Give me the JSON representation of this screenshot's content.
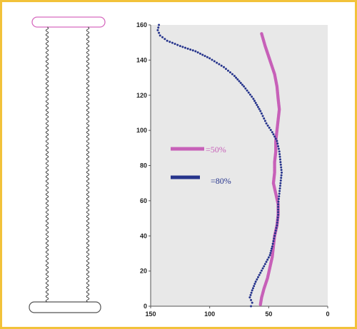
{
  "colors": {
    "border": "#f2c23a",
    "plot_bg": "#e8e8e8",
    "series_50": "#c760b8",
    "series_80": "#26348c",
    "spring": "#333333",
    "top_plate": "#d66bbf",
    "bottom_plate": "#555555"
  },
  "diagram": {
    "type": "two-spring column illustration",
    "spring_count": 2
  },
  "chart_data": {
    "type": "line",
    "title": "",
    "xlabel": "",
    "ylabel": "",
    "xlim": [
      150,
      0
    ],
    "ylim": [
      0,
      160
    ],
    "x_reversed": true,
    "xticks": [
      150,
      100,
      50,
      0
    ],
    "yticks": [
      0,
      20,
      40,
      60,
      80,
      100,
      120,
      140,
      160
    ],
    "grid": false,
    "legend_position": "left-middle",
    "series": [
      {
        "name": "=50%",
        "color": "#c760b8",
        "style": "thick-dots",
        "points": [
          [
            56,
            155
          ],
          [
            53,
            148
          ],
          [
            49,
            140
          ],
          [
            45,
            132
          ],
          [
            43,
            125
          ],
          [
            42,
            118
          ],
          [
            41,
            112
          ],
          [
            42,
            106
          ],
          [
            43,
            100
          ],
          [
            44,
            94
          ],
          [
            44,
            88
          ],
          [
            45,
            82
          ],
          [
            45,
            76
          ],
          [
            46,
            70
          ],
          [
            44,
            64
          ],
          [
            42,
            58
          ],
          [
            42,
            52
          ],
          [
            43,
            46
          ],
          [
            45,
            40
          ],
          [
            46,
            34
          ],
          [
            47,
            28
          ],
          [
            49,
            22
          ],
          [
            51,
            16
          ],
          [
            54,
            10
          ],
          [
            56,
            5
          ],
          [
            57,
            1
          ]
        ]
      },
      {
        "name": "=80%",
        "color": "#26348c",
        "style": "dotted",
        "points": [
          [
            143,
            160
          ],
          [
            144,
            157
          ],
          [
            142,
            154
          ],
          [
            136,
            151
          ],
          [
            125,
            148
          ],
          [
            112,
            145
          ],
          [
            100,
            141
          ],
          [
            88,
            136
          ],
          [
            79,
            131
          ],
          [
            71,
            125
          ],
          [
            63,
            118
          ],
          [
            57,
            111
          ],
          [
            52,
            104
          ],
          [
            47,
            99
          ],
          [
            43,
            94
          ],
          [
            41,
            88
          ],
          [
            40,
            82
          ],
          [
            39,
            76
          ],
          [
            40,
            70
          ],
          [
            41,
            64
          ],
          [
            42,
            58
          ],
          [
            42,
            52
          ],
          [
            43,
            46
          ],
          [
            45,
            40
          ],
          [
            47,
            34
          ],
          [
            49,
            29
          ],
          [
            53,
            24
          ],
          [
            57,
            19
          ],
          [
            61,
            14
          ],
          [
            64,
            9
          ],
          [
            66,
            5
          ],
          [
            64,
            2
          ],
          [
            65,
            0
          ]
        ]
      }
    ]
  }
}
